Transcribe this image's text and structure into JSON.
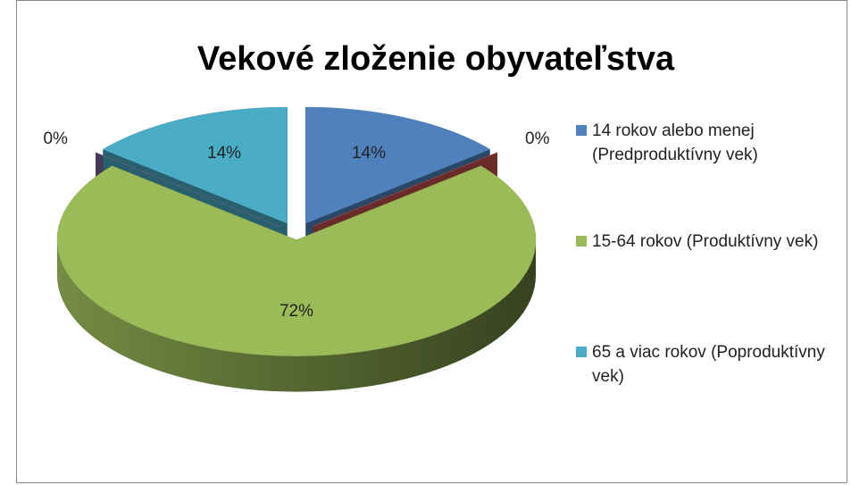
{
  "chart_data": {
    "type": "pie",
    "title": "Vekové zloženie obyvateľstva",
    "categories": [
      "14 rokov alebo menej (Predproduktívny vek)",
      null,
      "15-64 rokov (Produktívny vek)",
      null,
      "65 a viac rokov (Poproduktívny vek)"
    ],
    "values": [
      14,
      0,
      72,
      0,
      14
    ],
    "value_labels": [
      "14%",
      "0%",
      "72%",
      "0%",
      "14%"
    ],
    "colors": [
      "#4f81bd",
      "#c0504d",
      "#9bbb59",
      "#8064a2",
      "#4bacc6"
    ],
    "legend": "right"
  }
}
